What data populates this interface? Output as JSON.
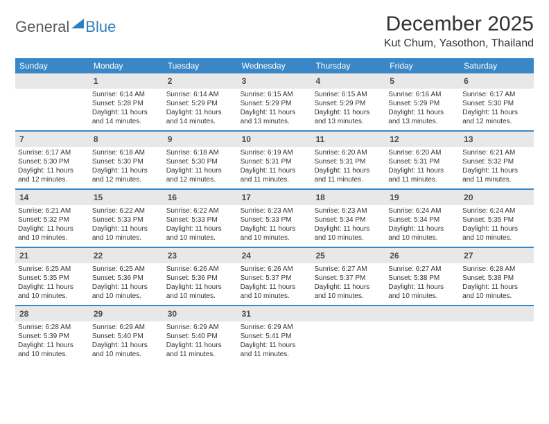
{
  "logo": {
    "part1": "General",
    "part2": "Blue"
  },
  "title": "December 2025",
  "subtitle": "Kut Chum, Yasothon, Thailand",
  "colors": {
    "header_bg": "#3a87c7",
    "header_text": "#ffffff",
    "daynum_bg": "#e8e8e8",
    "rule": "#3a87c7",
    "logo_gray": "#5a5a5a",
    "logo_blue": "#2f7fbf",
    "page_bg": "#ffffff",
    "text": "#333333"
  },
  "fonts": {
    "title_size_pt": 22,
    "subtitle_size_pt": 12,
    "dayhead_size_pt": 9,
    "daynum_size_pt": 9,
    "body_size_pt": 7.5
  },
  "dayNames": [
    "Sunday",
    "Monday",
    "Tuesday",
    "Wednesday",
    "Thursday",
    "Friday",
    "Saturday"
  ],
  "weeks": [
    [
      {
        "blank": true
      },
      {
        "n": "1",
        "sr": "6:14 AM",
        "ss": "5:28 PM",
        "dl": "11 hours and 14 minutes."
      },
      {
        "n": "2",
        "sr": "6:14 AM",
        "ss": "5:29 PM",
        "dl": "11 hours and 14 minutes."
      },
      {
        "n": "3",
        "sr": "6:15 AM",
        "ss": "5:29 PM",
        "dl": "11 hours and 13 minutes."
      },
      {
        "n": "4",
        "sr": "6:15 AM",
        "ss": "5:29 PM",
        "dl": "11 hours and 13 minutes."
      },
      {
        "n": "5",
        "sr": "6:16 AM",
        "ss": "5:29 PM",
        "dl": "11 hours and 13 minutes."
      },
      {
        "n": "6",
        "sr": "6:17 AM",
        "ss": "5:30 PM",
        "dl": "11 hours and 12 minutes."
      }
    ],
    [
      {
        "n": "7",
        "sr": "6:17 AM",
        "ss": "5:30 PM",
        "dl": "11 hours and 12 minutes."
      },
      {
        "n": "8",
        "sr": "6:18 AM",
        "ss": "5:30 PM",
        "dl": "11 hours and 12 minutes."
      },
      {
        "n": "9",
        "sr": "6:18 AM",
        "ss": "5:30 PM",
        "dl": "11 hours and 12 minutes."
      },
      {
        "n": "10",
        "sr": "6:19 AM",
        "ss": "5:31 PM",
        "dl": "11 hours and 11 minutes."
      },
      {
        "n": "11",
        "sr": "6:20 AM",
        "ss": "5:31 PM",
        "dl": "11 hours and 11 minutes."
      },
      {
        "n": "12",
        "sr": "6:20 AM",
        "ss": "5:31 PM",
        "dl": "11 hours and 11 minutes."
      },
      {
        "n": "13",
        "sr": "6:21 AM",
        "ss": "5:32 PM",
        "dl": "11 hours and 11 minutes."
      }
    ],
    [
      {
        "n": "14",
        "sr": "6:21 AM",
        "ss": "5:32 PM",
        "dl": "11 hours and 10 minutes."
      },
      {
        "n": "15",
        "sr": "6:22 AM",
        "ss": "5:33 PM",
        "dl": "11 hours and 10 minutes."
      },
      {
        "n": "16",
        "sr": "6:22 AM",
        "ss": "5:33 PM",
        "dl": "11 hours and 10 minutes."
      },
      {
        "n": "17",
        "sr": "6:23 AM",
        "ss": "5:33 PM",
        "dl": "11 hours and 10 minutes."
      },
      {
        "n": "18",
        "sr": "6:23 AM",
        "ss": "5:34 PM",
        "dl": "11 hours and 10 minutes."
      },
      {
        "n": "19",
        "sr": "6:24 AM",
        "ss": "5:34 PM",
        "dl": "11 hours and 10 minutes."
      },
      {
        "n": "20",
        "sr": "6:24 AM",
        "ss": "5:35 PM",
        "dl": "11 hours and 10 minutes."
      }
    ],
    [
      {
        "n": "21",
        "sr": "6:25 AM",
        "ss": "5:35 PM",
        "dl": "11 hours and 10 minutes."
      },
      {
        "n": "22",
        "sr": "6:25 AM",
        "ss": "5:36 PM",
        "dl": "11 hours and 10 minutes."
      },
      {
        "n": "23",
        "sr": "6:26 AM",
        "ss": "5:36 PM",
        "dl": "11 hours and 10 minutes."
      },
      {
        "n": "24",
        "sr": "6:26 AM",
        "ss": "5:37 PM",
        "dl": "11 hours and 10 minutes."
      },
      {
        "n": "25",
        "sr": "6:27 AM",
        "ss": "5:37 PM",
        "dl": "11 hours and 10 minutes."
      },
      {
        "n": "26",
        "sr": "6:27 AM",
        "ss": "5:38 PM",
        "dl": "11 hours and 10 minutes."
      },
      {
        "n": "27",
        "sr": "6:28 AM",
        "ss": "5:38 PM",
        "dl": "11 hours and 10 minutes."
      }
    ],
    [
      {
        "n": "28",
        "sr": "6:28 AM",
        "ss": "5:39 PM",
        "dl": "11 hours and 10 minutes."
      },
      {
        "n": "29",
        "sr": "6:29 AM",
        "ss": "5:40 PM",
        "dl": "11 hours and 10 minutes."
      },
      {
        "n": "30",
        "sr": "6:29 AM",
        "ss": "5:40 PM",
        "dl": "11 hours and 11 minutes."
      },
      {
        "n": "31",
        "sr": "6:29 AM",
        "ss": "5:41 PM",
        "dl": "11 hours and 11 minutes."
      },
      {
        "blank": true
      },
      {
        "blank": true
      },
      {
        "blank": true
      }
    ]
  ],
  "labels": {
    "sunrise": "Sunrise:",
    "sunset": "Sunset:",
    "daylight": "Daylight:"
  }
}
